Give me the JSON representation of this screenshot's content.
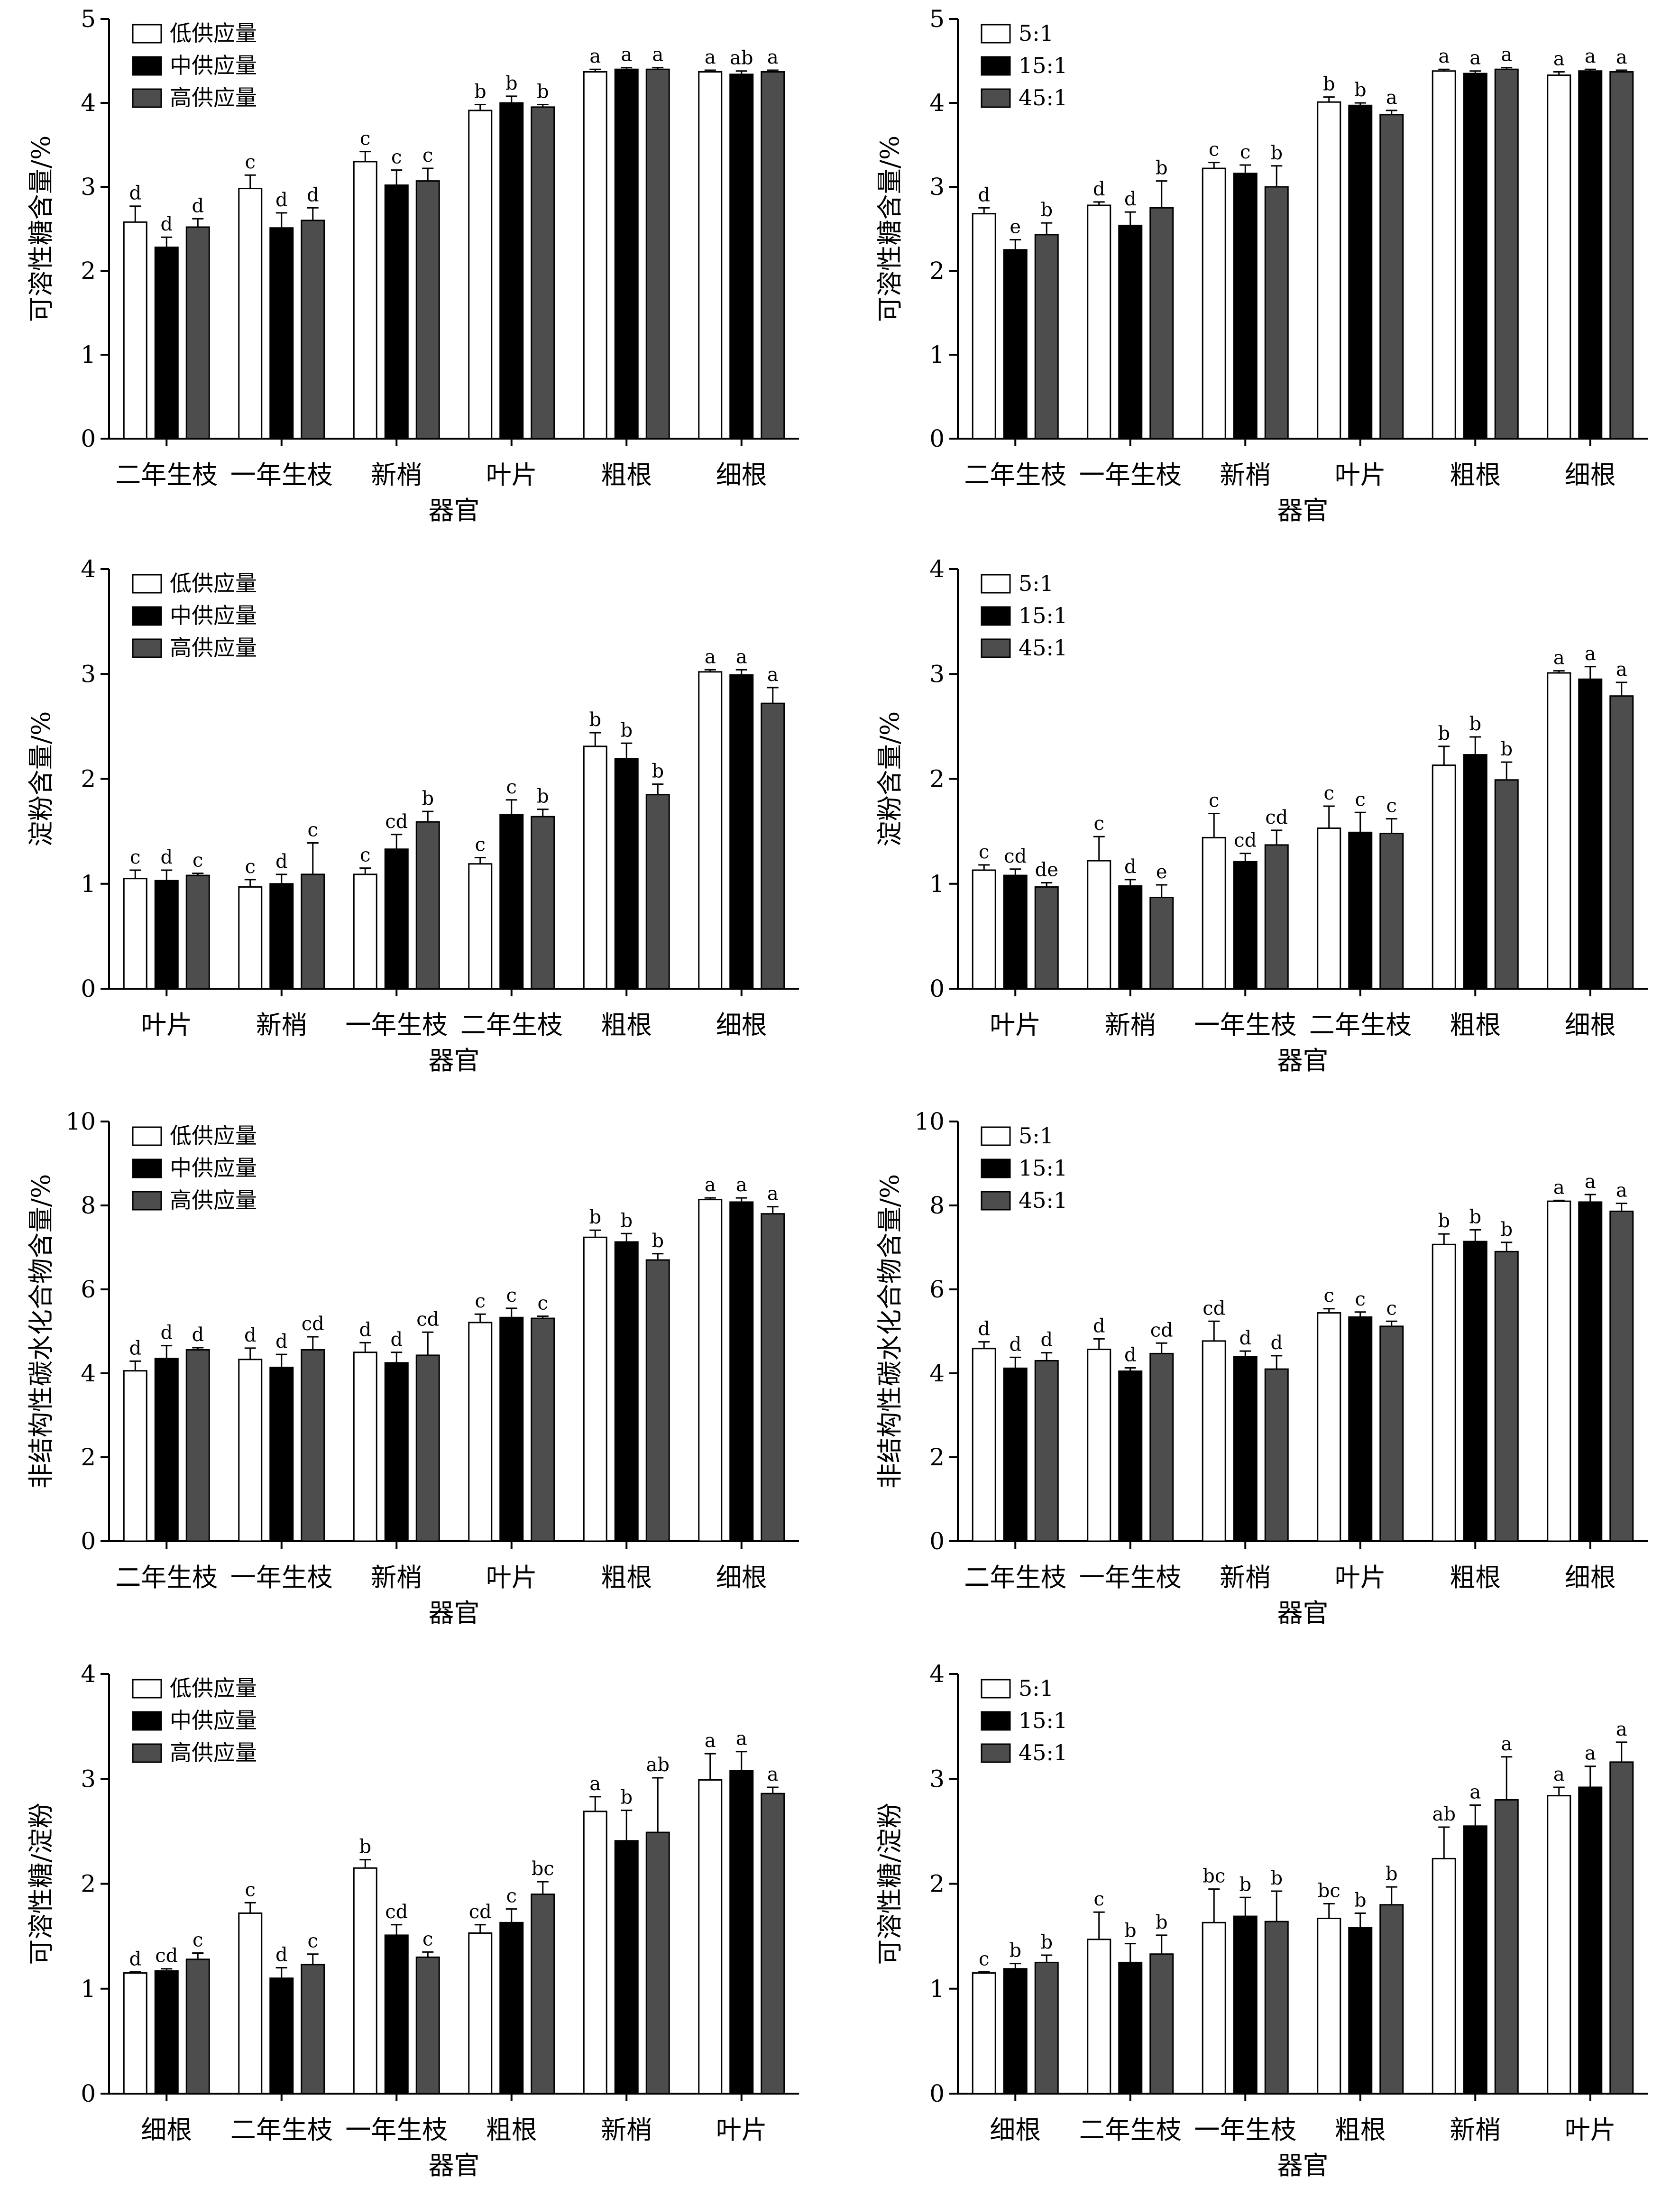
{
  "chart_data": [
    {
      "type": "bar",
      "panel": "a-left",
      "ylabel": "可溶性糖含量/%",
      "xlabel": "器官",
      "ylim": [
        0,
        5
      ],
      "yticks": [
        0,
        1,
        2,
        3,
        4,
        5
      ],
      "categories": [
        "二年生枝",
        "一年生枝",
        "新梢",
        "叶片",
        "粗根",
        "细根"
      ],
      "legend": "top-left",
      "series": [
        {
          "name": "低供应量",
          "color": "#ffffff",
          "values": [
            2.58,
            2.98,
            3.3,
            3.91,
            4.37,
            4.37
          ],
          "errors": [
            0.19,
            0.16,
            0.12,
            0.07,
            0.03,
            0.02
          ],
          "letters": [
            "d",
            "c",
            "c",
            "b",
            "a",
            "a"
          ]
        },
        {
          "name": "中供应量",
          "color": "#000000",
          "values": [
            2.28,
            2.51,
            3.02,
            4.0,
            4.4,
            4.34
          ],
          "errors": [
            0.12,
            0.18,
            0.18,
            0.08,
            0.02,
            0.04
          ],
          "letters": [
            "d",
            "d",
            "c",
            "b",
            "a",
            "ab"
          ]
        },
        {
          "name": "高供应量",
          "color": "#4d4d4d",
          "values": [
            2.52,
            2.6,
            3.07,
            3.95,
            4.4,
            4.37
          ],
          "errors": [
            0.1,
            0.15,
            0.15,
            0.03,
            0.02,
            0.02
          ],
          "letters": [
            "d",
            "d",
            "c",
            "b",
            "a",
            "a"
          ]
        }
      ]
    },
    {
      "type": "bar",
      "panel": "a-right",
      "ylabel": "可溶性糖含量/%",
      "xlabel": "器官",
      "ylim": [
        0,
        5
      ],
      "yticks": [
        0,
        1,
        2,
        3,
        4,
        5
      ],
      "categories": [
        "二年生枝",
        "一年生枝",
        "新梢",
        "叶片",
        "粗根",
        "细根"
      ],
      "legend": "top-left",
      "series": [
        {
          "name": "5:1",
          "color": "#ffffff",
          "values": [
            2.68,
            2.78,
            3.22,
            4.01,
            4.38,
            4.33
          ],
          "errors": [
            0.07,
            0.04,
            0.07,
            0.06,
            0.02,
            0.04
          ],
          "letters": [
            "d",
            "d",
            "c",
            "b",
            "a",
            "a"
          ]
        },
        {
          "name": "15:1",
          "color": "#000000",
          "values": [
            2.25,
            2.54,
            3.16,
            3.97,
            4.35,
            4.38
          ],
          "errors": [
            0.12,
            0.16,
            0.1,
            0.03,
            0.03,
            0.02
          ],
          "letters": [
            "e",
            "d",
            "c",
            "b",
            "a",
            "a"
          ]
        },
        {
          "name": "45:1",
          "color": "#4d4d4d",
          "values": [
            2.43,
            2.75,
            3.0,
            3.86,
            4.4,
            4.37
          ],
          "errors": [
            0.14,
            0.32,
            0.25,
            0.05,
            0.02,
            0.02
          ],
          "letters": [
            "b",
            "b",
            "b",
            "a",
            "a",
            "a"
          ]
        }
      ]
    },
    {
      "type": "bar",
      "panel": "b-left",
      "ylabel": "淀粉含量/%",
      "xlabel": "器官",
      "ylim": [
        0,
        4
      ],
      "yticks": [
        0,
        1,
        2,
        3,
        4
      ],
      "categories": [
        "叶片",
        "新梢",
        "一年生枝",
        "二年生枝",
        "粗根",
        "细根"
      ],
      "legend": "top-left",
      "series": [
        {
          "name": "低供应量",
          "color": "#ffffff",
          "values": [
            1.05,
            0.97,
            1.09,
            1.19,
            2.31,
            3.02
          ],
          "errors": [
            0.08,
            0.07,
            0.06,
            0.06,
            0.13,
            0.02
          ],
          "letters": [
            "c",
            "c",
            "c",
            "c",
            "b",
            "a"
          ]
        },
        {
          "name": "中供应量",
          "color": "#000000",
          "values": [
            1.03,
            1.0,
            1.33,
            1.66,
            2.19,
            2.99
          ],
          "errors": [
            0.1,
            0.09,
            0.14,
            0.14,
            0.15,
            0.05
          ],
          "letters": [
            "d",
            "d",
            "cd",
            "c",
            "b",
            "a"
          ]
        },
        {
          "name": "高供应量",
          "color": "#4d4d4d",
          "values": [
            1.08,
            1.09,
            1.59,
            1.64,
            1.85,
            2.72
          ],
          "errors": [
            0.02,
            0.3,
            0.1,
            0.07,
            0.1,
            0.15
          ],
          "letters": [
            "c",
            "c",
            "b",
            "b",
            "b",
            "a"
          ]
        }
      ]
    },
    {
      "type": "bar",
      "panel": "b-right",
      "ylabel": "淀粉含量/%",
      "xlabel": "器官",
      "ylim": [
        0,
        4
      ],
      "yticks": [
        0,
        1,
        2,
        3,
        4
      ],
      "categories": [
        "叶片",
        "新梢",
        "一年生枝",
        "二年生枝",
        "粗根",
        "细根"
      ],
      "legend": "top-left",
      "series": [
        {
          "name": "5:1",
          "color": "#ffffff",
          "values": [
            1.13,
            1.22,
            1.44,
            1.53,
            2.13,
            3.01
          ],
          "errors": [
            0.05,
            0.23,
            0.23,
            0.21,
            0.18,
            0.02
          ],
          "letters": [
            "c",
            "c",
            "c",
            "c",
            "b",
            "a"
          ]
        },
        {
          "name": "15:1",
          "color": "#000000",
          "values": [
            1.08,
            0.98,
            1.21,
            1.49,
            2.23,
            2.95
          ],
          "errors": [
            0.06,
            0.06,
            0.08,
            0.19,
            0.17,
            0.12
          ],
          "letters": [
            "cd",
            "d",
            "cd",
            "c",
            "b",
            "a"
          ]
        },
        {
          "name": "45:1",
          "color": "#4d4d4d",
          "values": [
            0.97,
            0.87,
            1.37,
            1.48,
            1.99,
            2.79
          ],
          "errors": [
            0.04,
            0.12,
            0.14,
            0.14,
            0.17,
            0.13
          ],
          "letters": [
            "de",
            "e",
            "cd",
            "c",
            "b",
            "a"
          ]
        }
      ]
    },
    {
      "type": "bar",
      "panel": "c-left",
      "ylabel": "非结构性碳水化合物含量/%",
      "xlabel": "器官",
      "ylim": [
        0,
        10
      ],
      "yticks": [
        0,
        2,
        4,
        6,
        8,
        10
      ],
      "categories": [
        "二年生枝",
        "一年生枝",
        "新梢",
        "叶片",
        "粗根",
        "细根"
      ],
      "legend": "top-left",
      "series": [
        {
          "name": "低供应量",
          "color": "#ffffff",
          "values": [
            4.06,
            4.33,
            4.5,
            5.21,
            7.24,
            8.14
          ],
          "errors": [
            0.23,
            0.27,
            0.23,
            0.2,
            0.17,
            0.04
          ],
          "letters": [
            "d",
            "d",
            "d",
            "c",
            "b",
            "a"
          ]
        },
        {
          "name": "中供应量",
          "color": "#000000",
          "values": [
            4.35,
            4.14,
            4.25,
            5.33,
            7.13,
            8.08
          ],
          "errors": [
            0.31,
            0.31,
            0.25,
            0.22,
            0.2,
            0.1
          ],
          "letters": [
            "d",
            "d",
            "d",
            "c",
            "b",
            "a"
          ]
        },
        {
          "name": "高供应量",
          "color": "#4d4d4d",
          "values": [
            4.56,
            4.56,
            4.43,
            5.31,
            6.7,
            7.8
          ],
          "errors": [
            0.05,
            0.31,
            0.55,
            0.05,
            0.15,
            0.17
          ],
          "letters": [
            "d",
            "cd",
            "cd",
            "c",
            "b",
            "a"
          ]
        }
      ]
    },
    {
      "type": "bar",
      "panel": "c-right",
      "ylabel": "非结构性碳水化合物含量/%",
      "xlabel": "器官",
      "ylim": [
        0,
        10
      ],
      "yticks": [
        0,
        2,
        4,
        6,
        8,
        10
      ],
      "categories": [
        "二年生枝",
        "一年生枝",
        "新梢",
        "叶片",
        "粗根",
        "细根"
      ],
      "legend": "top-left",
      "series": [
        {
          "name": "5:1",
          "color": "#ffffff",
          "values": [
            4.59,
            4.57,
            4.77,
            5.44,
            7.07,
            8.1
          ],
          "errors": [
            0.16,
            0.25,
            0.47,
            0.1,
            0.25,
            0.02
          ],
          "letters": [
            "d",
            "d",
            "cd",
            "c",
            "b",
            "a"
          ]
        },
        {
          "name": "15:1",
          "color": "#000000",
          "values": [
            4.12,
            4.05,
            4.39,
            5.34,
            7.14,
            8.08
          ],
          "errors": [
            0.26,
            0.08,
            0.14,
            0.12,
            0.28,
            0.18
          ],
          "letters": [
            "d",
            "d",
            "d",
            "c",
            "b",
            "a"
          ]
        },
        {
          "name": "45:1",
          "color": "#4d4d4d",
          "values": [
            4.3,
            4.47,
            4.1,
            5.12,
            6.9,
            7.86
          ],
          "errors": [
            0.19,
            0.25,
            0.32,
            0.12,
            0.22,
            0.19
          ],
          "letters": [
            "d",
            "cd",
            "d",
            "c",
            "b",
            "a"
          ]
        }
      ]
    },
    {
      "type": "bar",
      "panel": "d-left",
      "ylabel": "可溶性糖/淀粉",
      "xlabel": "器官",
      "ylim": [
        0,
        4
      ],
      "yticks": [
        0,
        1,
        2,
        3,
        4
      ],
      "categories": [
        "细根",
        "二年生枝",
        "一年生枝",
        "粗根",
        "新梢",
        "叶片"
      ],
      "legend": "top-left",
      "series": [
        {
          "name": "低供应量",
          "color": "#ffffff",
          "values": [
            1.15,
            1.72,
            2.15,
            1.53,
            2.69,
            2.99
          ],
          "errors": [
            0.01,
            0.1,
            0.08,
            0.08,
            0.14,
            0.25
          ],
          "letters": [
            "d",
            "c",
            "b",
            "cd",
            "a",
            "a"
          ]
        },
        {
          "name": "中供应量",
          "color": "#000000",
          "values": [
            1.17,
            1.1,
            1.51,
            1.63,
            2.41,
            3.08
          ],
          "errors": [
            0.02,
            0.1,
            0.1,
            0.13,
            0.29,
            0.18
          ],
          "letters": [
            "cd",
            "d",
            "cd",
            "c",
            "b",
            "a"
          ]
        },
        {
          "name": "高供应量",
          "color": "#4d4d4d",
          "values": [
            1.28,
            1.23,
            1.3,
            1.9,
            2.49,
            2.86
          ],
          "errors": [
            0.06,
            0.1,
            0.05,
            0.12,
            0.52,
            0.06
          ],
          "letters": [
            "c",
            "c",
            "c",
            "bc",
            "ab",
            "a"
          ]
        }
      ]
    },
    {
      "type": "bar",
      "panel": "d-right",
      "ylabel": "可溶性糖/淀粉",
      "xlabel": "器官",
      "ylim": [
        0,
        4
      ],
      "yticks": [
        0,
        1,
        2,
        3,
        4
      ],
      "categories": [
        "细根",
        "二年生枝",
        "一年生枝",
        "粗根",
        "新梢",
        "叶片"
      ],
      "legend": "top-left",
      "series": [
        {
          "name": "5:1",
          "color": "#ffffff",
          "values": [
            1.15,
            1.47,
            1.63,
            1.67,
            2.24,
            2.84
          ],
          "errors": [
            0.01,
            0.26,
            0.32,
            0.14,
            0.3,
            0.08
          ],
          "letters": [
            "c",
            "c",
            "bc",
            "bc",
            "ab",
            "a"
          ]
        },
        {
          "name": "15:1",
          "color": "#000000",
          "values": [
            1.19,
            1.25,
            1.69,
            1.58,
            2.55,
            2.92
          ],
          "errors": [
            0.05,
            0.18,
            0.18,
            0.14,
            0.2,
            0.2
          ],
          "letters": [
            "b",
            "b",
            "b",
            "b",
            "a",
            "a"
          ]
        },
        {
          "name": "45:1",
          "color": "#4d4d4d",
          "values": [
            1.25,
            1.33,
            1.64,
            1.8,
            2.8,
            3.16
          ],
          "errors": [
            0.07,
            0.18,
            0.29,
            0.17,
            0.41,
            0.19
          ],
          "letters": [
            "b",
            "b",
            "b",
            "b",
            "a",
            "a"
          ]
        }
      ]
    }
  ]
}
